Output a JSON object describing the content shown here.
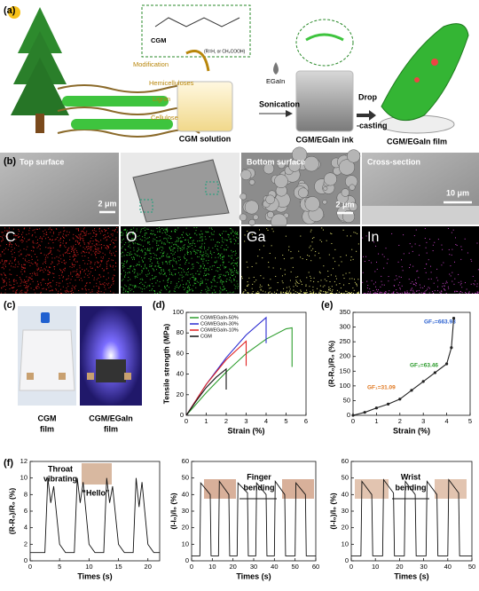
{
  "a": {
    "label": "(a)",
    "cgm": "CGM",
    "r_group": "(R=H, or CH₂COOH)",
    "modification": "Modification",
    "hemicelluloses": "Hemicelluloses",
    "lignin": "Lignin",
    "cellulose": "Cellulose",
    "solution": "CGM solution",
    "egain": "EGaIn",
    "sonication": "Sonication",
    "ink": "CGM/EGaIn ink",
    "drop": "Drop",
    "casting": "-casting",
    "film": "CGM/EGaIn film"
  },
  "b": {
    "label": "(b)",
    "top": "Top surface",
    "scale1": "2 μm",
    "bottom": "Bottom surface",
    "scale2": "2 μm",
    "cross": "Cross-section",
    "scale3": "10 μm",
    "elements": [
      "C",
      "O",
      "Ga",
      "In"
    ]
  },
  "c": {
    "label": "(c)",
    "left": [
      "CGM",
      "film"
    ],
    "right": [
      "CGM/EGaIn",
      "film"
    ]
  },
  "d": {
    "label": "(d)",
    "ylabel": "Tensile strength (MPa)",
    "xlabel": "Strain (%)",
    "xlim": [
      0,
      6
    ],
    "ylim": [
      0,
      100
    ],
    "xticks": [
      0,
      1,
      2,
      3,
      4,
      5,
      6
    ],
    "yticks": [
      0,
      20,
      40,
      60,
      80,
      100
    ],
    "series": [
      {
        "name": "CGM/EGaIn-50%",
        "color": "#2f9e2f",
        "x": [
          0,
          1,
          2,
          3,
          4,
          5,
          5.3,
          5.3
        ],
        "values": [
          0,
          22,
          42,
          60,
          74,
          84,
          85,
          47
        ]
      },
      {
        "name": "CGM/EGaIn-30%",
        "color": "#2a2ad0",
        "x": [
          0,
          1,
          2,
          3,
          4,
          4
        ],
        "values": [
          0,
          30,
          56,
          78,
          95,
          70
        ]
      },
      {
        "name": "CGM/EGaIn-10%",
        "color": "#e02020",
        "x": [
          0,
          1,
          2,
          3,
          3
        ],
        "values": [
          0,
          30,
          54,
          72,
          48
        ]
      },
      {
        "name": "CGM",
        "color": "#111111",
        "x": [
          0,
          0.5,
          1,
          1.5,
          2,
          2
        ],
        "values": [
          0,
          14,
          27,
          37,
          45,
          25
        ]
      }
    ]
  },
  "e": {
    "label": "(e)",
    "ylabel": "(R-R₀)/R₀ (%)",
    "xlabel": "Strain (%)",
    "xlim": [
      0,
      5
    ],
    "ylim": [
      0,
      350
    ],
    "xticks": [
      0,
      1,
      2,
      3,
      4,
      5
    ],
    "yticks": [
      0,
      50,
      100,
      150,
      200,
      250,
      300,
      350
    ],
    "gf": [
      "GF₁=31.09",
      "GF₂=63.46",
      "GF₃=663.98"
    ],
    "series": [
      {
        "color": "#222222",
        "x": [
          0,
          0.5,
          1,
          1.5,
          2,
          2.5,
          3,
          3.5,
          4,
          4.2,
          4.3
        ],
        "values": [
          0,
          10,
          25,
          38,
          55,
          85,
          115,
          145,
          175,
          230,
          330
        ]
      }
    ]
  },
  "f": {
    "label": "(f)",
    "charts": [
      {
        "ylabel": "(R-R₀)/R₀ (%)",
        "xlabel": "Times (s)",
        "xlim": [
          0,
          22
        ],
        "ylim": [
          0,
          12
        ],
        "xticks": [
          0,
          5,
          10,
          15,
          20
        ],
        "yticks": [
          0,
          2,
          4,
          6,
          8,
          10,
          12
        ],
        "caption": [
          "Throat",
          "vibrating"
        ],
        "quote": "“Hello”",
        "series": [
          {
            "color": "#111111",
            "x": [
              0,
              2.5,
              3,
              3.5,
              4,
              5,
              6,
              7.5,
              8,
              8.5,
              9,
              10,
              11,
              12.5,
              13,
              13.5,
              14,
              15,
              16,
              17.5,
              18,
              18.5,
              19,
              20,
              21,
              22
            ],
            "values": [
              1,
              1,
              10,
              7,
              9,
              2,
              1,
              1,
              10,
              7,
              9.5,
              2,
              1,
              1,
              10,
              7,
              9,
              2,
              1,
              1,
              10,
              6.5,
              9.5,
              2,
              1,
              1
            ]
          }
        ]
      },
      {
        "ylabel": "(I-I₀)/I₀ (%)",
        "xlabel": "Times (s)",
        "xlim": [
          0,
          60
        ],
        "ylim": [
          0,
          60
        ],
        "xticks": [
          0,
          10,
          20,
          30,
          40,
          50,
          60
        ],
        "yticks": [
          0,
          10,
          20,
          30,
          40,
          50,
          60
        ],
        "caption": [
          "Finger",
          "bending"
        ],
        "series": [
          {
            "color": "#111111",
            "x": [
              0,
              4,
              4.4,
              9,
              9.4,
              13,
              13.4,
              18,
              18.4,
              22,
              22.4,
              27,
              27.4,
              31,
              31.4,
              36,
              36.4,
              40,
              40.4,
              45,
              45.4,
              50,
              50.4,
              55,
              55.4,
              60
            ],
            "values": [
              3,
              3,
              47,
              40,
              3,
              3,
              48,
              40,
              3,
              3,
              47,
              41,
              3,
              3,
              47,
              40,
              3,
              3,
              48,
              40,
              3,
              3,
              47,
              40,
              3,
              3
            ]
          }
        ]
      },
      {
        "ylabel": "(I-I₀)/I₀ (%)",
        "xlabel": "Times (s)",
        "xlim": [
          0,
          50
        ],
        "ylim": [
          0,
          60
        ],
        "xticks": [
          0,
          10,
          20,
          30,
          40,
          50
        ],
        "yticks": [
          0,
          10,
          20,
          30,
          40,
          50,
          60
        ],
        "caption": [
          "Wrist",
          "bending"
        ],
        "series": [
          {
            "color": "#111111",
            "x": [
              0,
              4,
              4.4,
              8.5,
              8.9,
              13,
              13.4,
              17.5,
              17.9,
              22,
              22.4,
              26.5,
              26.9,
              31,
              31.4,
              35.5,
              35.9,
              40,
              40.4,
              44.5,
              44.9,
              50
            ],
            "values": [
              3,
              3,
              48,
              40,
              3,
              3,
              49,
              41,
              3,
              3,
              48,
              40,
              3,
              3,
              48,
              40,
              3,
              3,
              49,
              41,
              3,
              3
            ]
          }
        ]
      }
    ]
  }
}
